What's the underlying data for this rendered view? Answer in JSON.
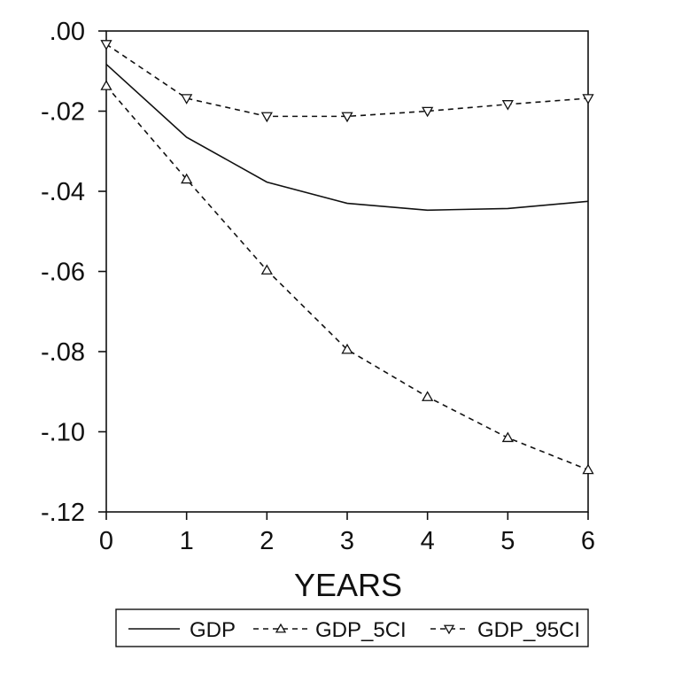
{
  "chart_data": {
    "type": "line",
    "title": "",
    "xlabel": "YEARS",
    "ylabel": "",
    "x": [
      0,
      1,
      2,
      3,
      4,
      5,
      6
    ],
    "xticks": [
      "0",
      "1",
      "2",
      "3",
      "4",
      "5",
      "6"
    ],
    "yticks": [
      ".00",
      "-.02",
      "-.04",
      "-.06",
      "-.08",
      "-.10",
      "-.12"
    ],
    "ytick_values": [
      0.0,
      -0.02,
      -0.04,
      -0.06,
      -0.08,
      -0.1,
      -0.12
    ],
    "xlim": [
      0,
      6
    ],
    "ylim": [
      -0.12,
      0.0
    ],
    "grid": false,
    "legend_position": "bottom",
    "series": [
      {
        "name": "GDP",
        "values": [
          -0.0083,
          -0.0265,
          -0.0377,
          -0.043,
          -0.0447,
          -0.0443,
          -0.0425
        ],
        "style": "solid",
        "marker": "none"
      },
      {
        "name": "GDP_5CI",
        "values": [
          -0.0137,
          -0.037,
          -0.0597,
          -0.0795,
          -0.0913,
          -0.1015,
          -0.1095
        ],
        "style": "dashed",
        "marker": "triangle-up"
      },
      {
        "name": "GDP_95CI",
        "values": [
          -0.0033,
          -0.0168,
          -0.0213,
          -0.0213,
          -0.02,
          -0.0183,
          -0.0168
        ],
        "style": "dashed",
        "marker": "triangle-down"
      }
    ],
    "colors": {
      "line": "#111111",
      "background": "#ffffff"
    }
  }
}
